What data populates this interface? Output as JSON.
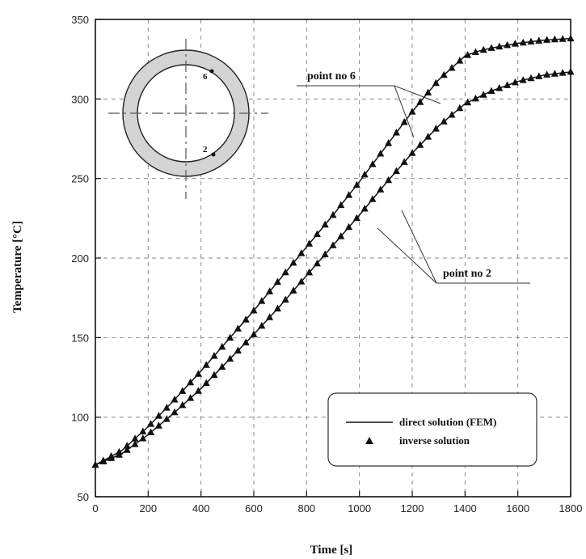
{
  "chart_data": {
    "type": "line",
    "title": "",
    "xlabel": "Time   [s]",
    "ylabel": "Temperature   [°C]",
    "xlim": [
      0,
      1800
    ],
    "ylim": [
      50,
      350
    ],
    "xticks": [
      0,
      200,
      400,
      600,
      800,
      1000,
      1200,
      1400,
      1600,
      1800
    ],
    "yticks": [
      50,
      100,
      150,
      200,
      250,
      300,
      350
    ],
    "grid": true,
    "legend_position": "bottom-right",
    "legend": {
      "direct": "direct solution (FEM)",
      "inverse": "inverse solution"
    },
    "series": [
      {
        "name": "point no 6",
        "x": [
          0,
          100,
          200,
          300,
          400,
          500,
          600,
          700,
          800,
          900,
          1000,
          1100,
          1200,
          1300,
          1400,
          1450,
          1500,
          1600,
          1700,
          1800
        ],
        "y": [
          70,
          79,
          94,
          111,
          129,
          148,
          167,
          187,
          207,
          227,
          248,
          270,
          292,
          312,
          327,
          330,
          332,
          335,
          337,
          338
        ]
      },
      {
        "name": "point no 2",
        "x": [
          0,
          100,
          200,
          300,
          400,
          500,
          600,
          700,
          800,
          900,
          1000,
          1100,
          1200,
          1300,
          1400,
          1500,
          1600,
          1700,
          1800
        ],
        "y": [
          70,
          77,
          89,
          103,
          118,
          135,
          152,
          170,
          189,
          208,
          227,
          247,
          266,
          283,
          297,
          305,
          311,
          315,
          317
        ]
      }
    ],
    "annotations": {
      "point6": "point no 6",
      "point2": "point no 2",
      "inset_marker_6": "6",
      "inset_marker_2": "2"
    }
  }
}
